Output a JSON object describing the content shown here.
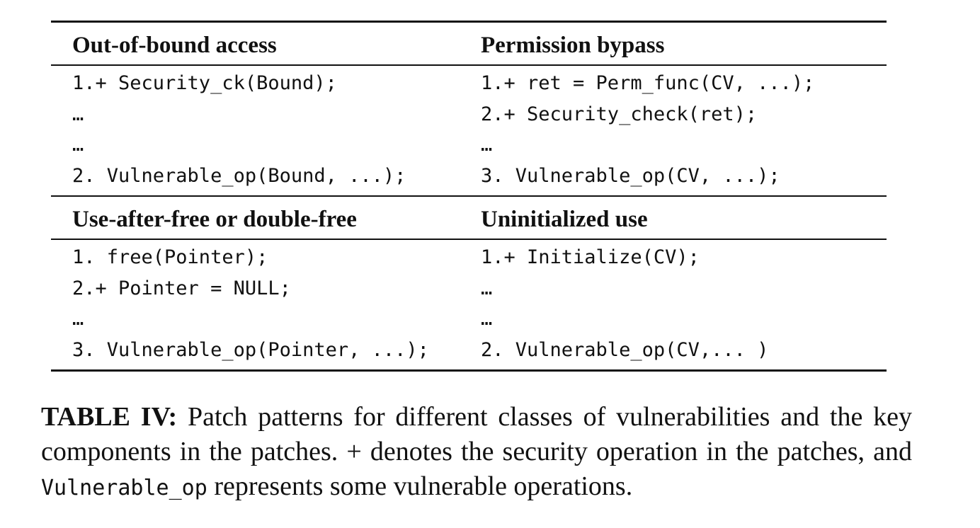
{
  "table": {
    "sections": [
      {
        "left_title": "Out-of-bound access",
        "right_title": "Permission bypass",
        "left_lines": [
          "1.+ Security_ck(Bound);",
          "…",
          "…",
          "2. Vulnerable_op(Bound, ...);"
        ],
        "right_lines": [
          "1.+ ret = Perm_func(CV, ...);",
          "2.+ Security_check(ret);",
          "…",
          "3. Vulnerable_op(CV, ...);"
        ]
      },
      {
        "left_title": "Use-after-free or double-free",
        "right_title": "Uninitialized use",
        "left_lines": [
          "1. free(Pointer);",
          "2.+ Pointer = NULL;",
          "…",
          "3. Vulnerable_op(Pointer, ...);"
        ],
        "right_lines": [
          "1.+ Initialize(CV);",
          "…",
          "…",
          "2. Vulnerable_op(CV,... )"
        ]
      }
    ]
  },
  "caption": {
    "label": "TABLE IV:",
    "text_1": " Patch patterns for different classes of vulnerabilities and the key components in the patches. + denotes the security operation in the patches, and ",
    "code_term": "Vulnerable_op",
    "text_2": " represents some vulnerable operations."
  }
}
